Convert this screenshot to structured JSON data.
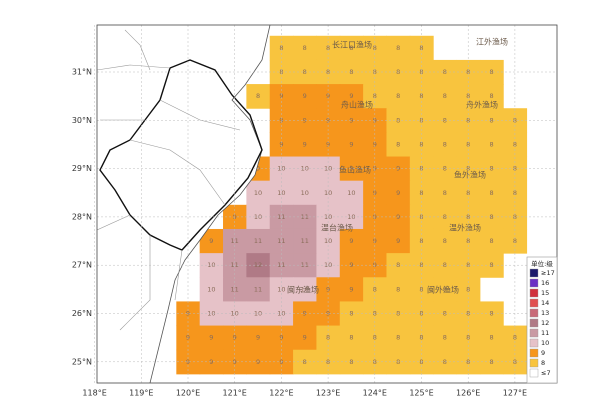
{
  "xticks": [
    {
      "value": 118,
      "label": "118°E"
    },
    {
      "value": 119,
      "label": "119°E"
    },
    {
      "value": 120,
      "label": "120°E"
    },
    {
      "value": 121,
      "label": "121°E"
    },
    {
      "value": 122,
      "label": "122°E"
    },
    {
      "value": 123,
      "label": "123°E"
    },
    {
      "value": 124,
      "label": "124°E"
    },
    {
      "value": 125,
      "label": "125°E"
    },
    {
      "value": 126,
      "label": "126°E"
    },
    {
      "value": 127,
      "label": "127°E"
    }
  ],
  "yticks": [
    {
      "value": 31,
      "label": "31°N"
    },
    {
      "value": 30,
      "label": "30°N"
    },
    {
      "value": 29,
      "label": "29°N"
    },
    {
      "value": 28,
      "label": "28°N"
    },
    {
      "value": 27,
      "label": "27°N"
    },
    {
      "value": 26,
      "label": "26°N"
    },
    {
      "value": 25,
      "label": "25°N"
    }
  ],
  "areas": [
    "长江口渔场",
    "江外渔场",
    "舟山渔场",
    "舟外渔场",
    "鱼山渔场",
    "鱼外渔场",
    "温台渔场",
    "温外渔场",
    "闽东渔场",
    "闽外渔场"
  ],
  "legend": {
    "title": "单位:级",
    "items": [
      {
        "label": "≥17",
        "color": "#1c1a6b"
      },
      {
        "label": "16",
        "color": "#6a2fc4"
      },
      {
        "label": "15",
        "color": "#d0303c"
      },
      {
        "label": "14",
        "color": "#e05050"
      },
      {
        "label": "13",
        "color": "#c86a78"
      },
      {
        "label": "12",
        "color": "#b07a86"
      },
      {
        "label": "11",
        "color": "#c99aa3"
      },
      {
        "label": "10",
        "color": "#e6c2c8"
      },
      {
        "label": "9",
        "color": "#f6961c"
      },
      {
        "label": "8",
        "color": "#f8c43e"
      },
      {
        "label": "≤7",
        "color": "#ffffff"
      }
    ]
  },
  "grid": {
    "lons": [
      120,
      120.5,
      121,
      121.5,
      122,
      122.5,
      123,
      123.5,
      124,
      124.5,
      125,
      125.5,
      126,
      126.5,
      127
    ],
    "lats": [
      31.5,
      31,
      30.5,
      30,
      29.5,
      29,
      28.5,
      28,
      27.5,
      27,
      26.5,
      26,
      25.5,
      25
    ],
    "values": [
      [
        null,
        null,
        null,
        null,
        8,
        8,
        8,
        8,
        8,
        8,
        8,
        null,
        null,
        null,
        null
      ],
      [
        null,
        null,
        null,
        null,
        8,
        8,
        8,
        8,
        8,
        8,
        8,
        8,
        8,
        8,
        null
      ],
      [
        null,
        null,
        null,
        8,
        9,
        9,
        9,
        9,
        8,
        8,
        8,
        8,
        8,
        8,
        null
      ],
      [
        null,
        null,
        null,
        null,
        9,
        9,
        9,
        9,
        9,
        8,
        8,
        8,
        8,
        8,
        8
      ],
      [
        null,
        null,
        null,
        null,
        9,
        9,
        9,
        9,
        9,
        8,
        8,
        8,
        8,
        8,
        8
      ],
      [
        null,
        null,
        null,
        9,
        10,
        10,
        10,
        9,
        9,
        9,
        8,
        8,
        8,
        8,
        8
      ],
      [
        null,
        null,
        null,
        10,
        10,
        10,
        10,
        10,
        9,
        9,
        8,
        8,
        8,
        8,
        8
      ],
      [
        null,
        null,
        9,
        10,
        11,
        11,
        10,
        10,
        9,
        9,
        8,
        8,
        8,
        8,
        8
      ],
      [
        null,
        9,
        11,
        11,
        11,
        11,
        10,
        9,
        9,
        9,
        8,
        8,
        8,
        8,
        8
      ],
      [
        null,
        10,
        11,
        12,
        11,
        11,
        10,
        9,
        9,
        8,
        8,
        8,
        8,
        8,
        null
      ],
      [
        null,
        10,
        11,
        11,
        10,
        10,
        9,
        9,
        8,
        8,
        8,
        8,
        8,
        null,
        null
      ],
      [
        9,
        10,
        10,
        10,
        10,
        9,
        9,
        8,
        8,
        8,
        8,
        8,
        8,
        8,
        null
      ],
      [
        9,
        9,
        9,
        9,
        9,
        9,
        8,
        8,
        8,
        8,
        8,
        8,
        8,
        8,
        8
      ],
      [
        9,
        9,
        9,
        9,
        9,
        8,
        8,
        8,
        8,
        8,
        8,
        8,
        8,
        8,
        8
      ]
    ]
  }
}
